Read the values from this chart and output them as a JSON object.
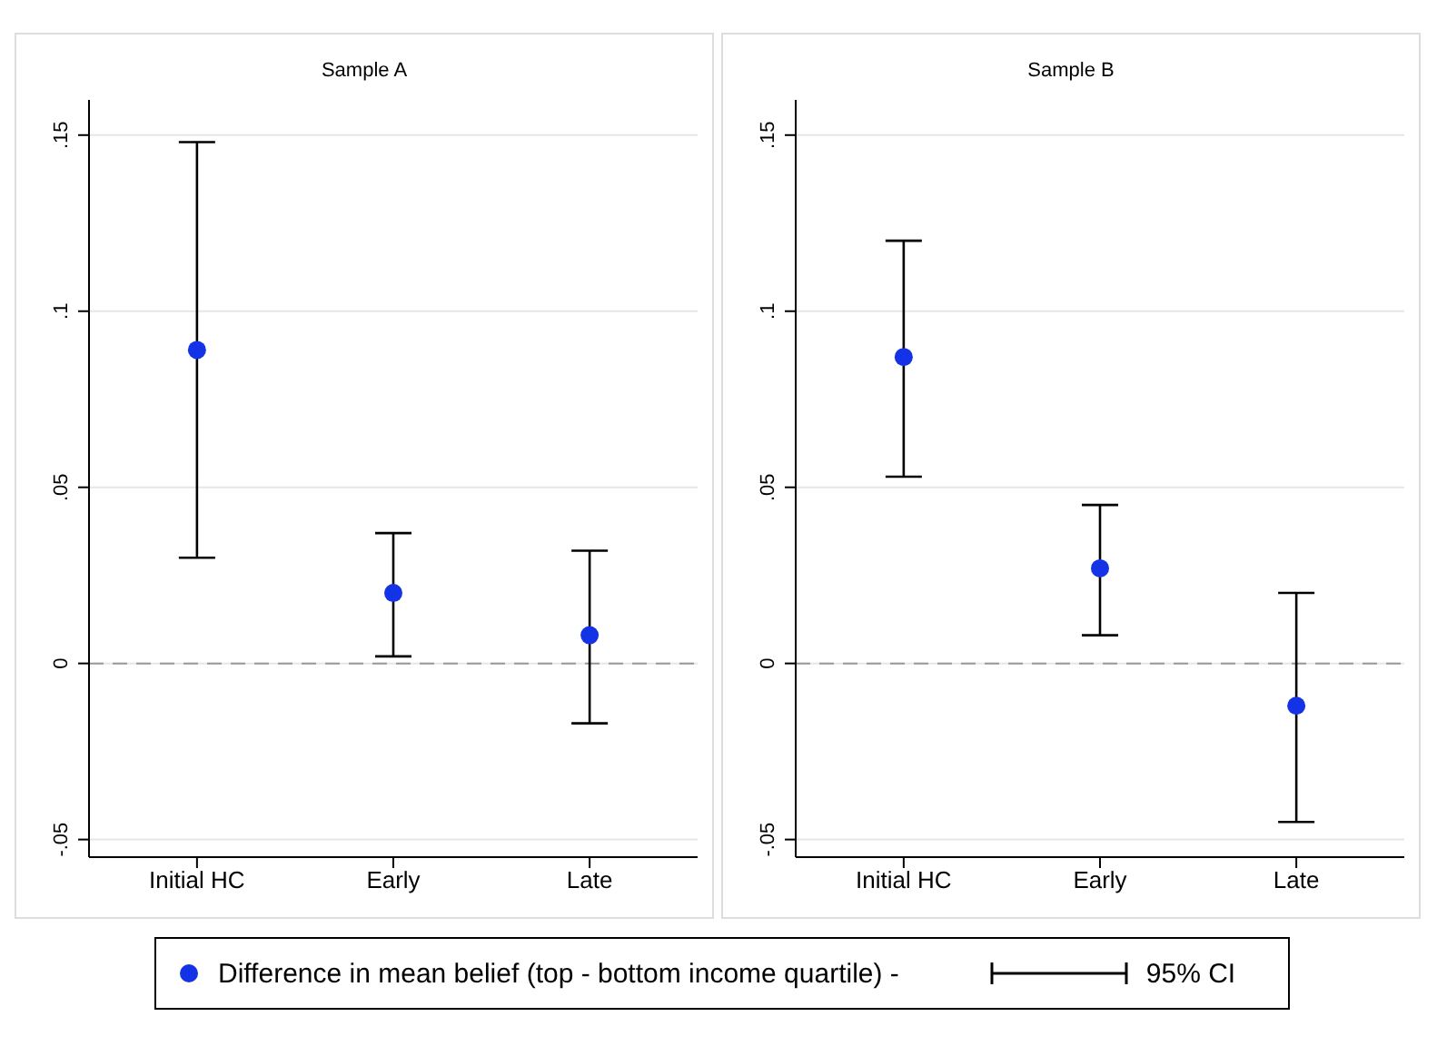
{
  "chart_data": [
    {
      "type": "scatter",
      "title": "Sample A",
      "categories": [
        "Initial HC",
        "Early",
        "Late"
      ],
      "series": [
        {
          "color": "#1432e6",
          "values": [
            0.089,
            0.02,
            0.008
          ],
          "errors": [
            [
              0.03,
              0.148
            ],
            [
              0.002,
              0.037
            ],
            [
              -0.017,
              0.032
            ]
          ]
        }
      ],
      "ylim": [
        -0.055,
        0.16
      ],
      "yticks": [
        {
          "value": -0.05,
          "label": "-.05"
        },
        0,
        {
          "value": 0.05,
          "label": ".05"
        },
        {
          "value": 0.1,
          "label": ".1"
        },
        {
          "value": 0.15,
          "label": ".15"
        }
      ],
      "grid": "y",
      "marker": "circle",
      "legend": false,
      "ref_lines": [
        {
          "axis": "y",
          "value": 0,
          "color": "#999999",
          "line_style": "dashed"
        }
      ]
    },
    {
      "type": "scatter",
      "title": "Sample B",
      "categories": [
        "Initial HC",
        "Early",
        "Late"
      ],
      "series": [
        {
          "name": "Difference in mean belief (top - bottom income quartile) -",
          "color": "#1432e6",
          "values": [
            0.087,
            0.027,
            -0.012
          ],
          "errors": [
            [
              0.053,
              0.12
            ],
            [
              0.008,
              0.045
            ],
            [
              -0.045,
              0.02
            ]
          ]
        }
      ],
      "ylim": [
        -0.055,
        0.16
      ],
      "yticks": [
        {
          "value": -0.05,
          "label": "-.05"
        },
        0,
        {
          "value": 0.05,
          "label": ".05"
        },
        {
          "value": 0.1,
          "label": ".1"
        },
        {
          "value": 0.15,
          "label": ".15"
        }
      ],
      "grid": "y",
      "marker": "circle",
      "legend": "bottom",
      "annotations": [
        "95% CI"
      ],
      "ref_lines": [
        {
          "axis": "y",
          "value": 0,
          "color": "#999999",
          "line_style": "dashed"
        }
      ]
    }
  ]
}
